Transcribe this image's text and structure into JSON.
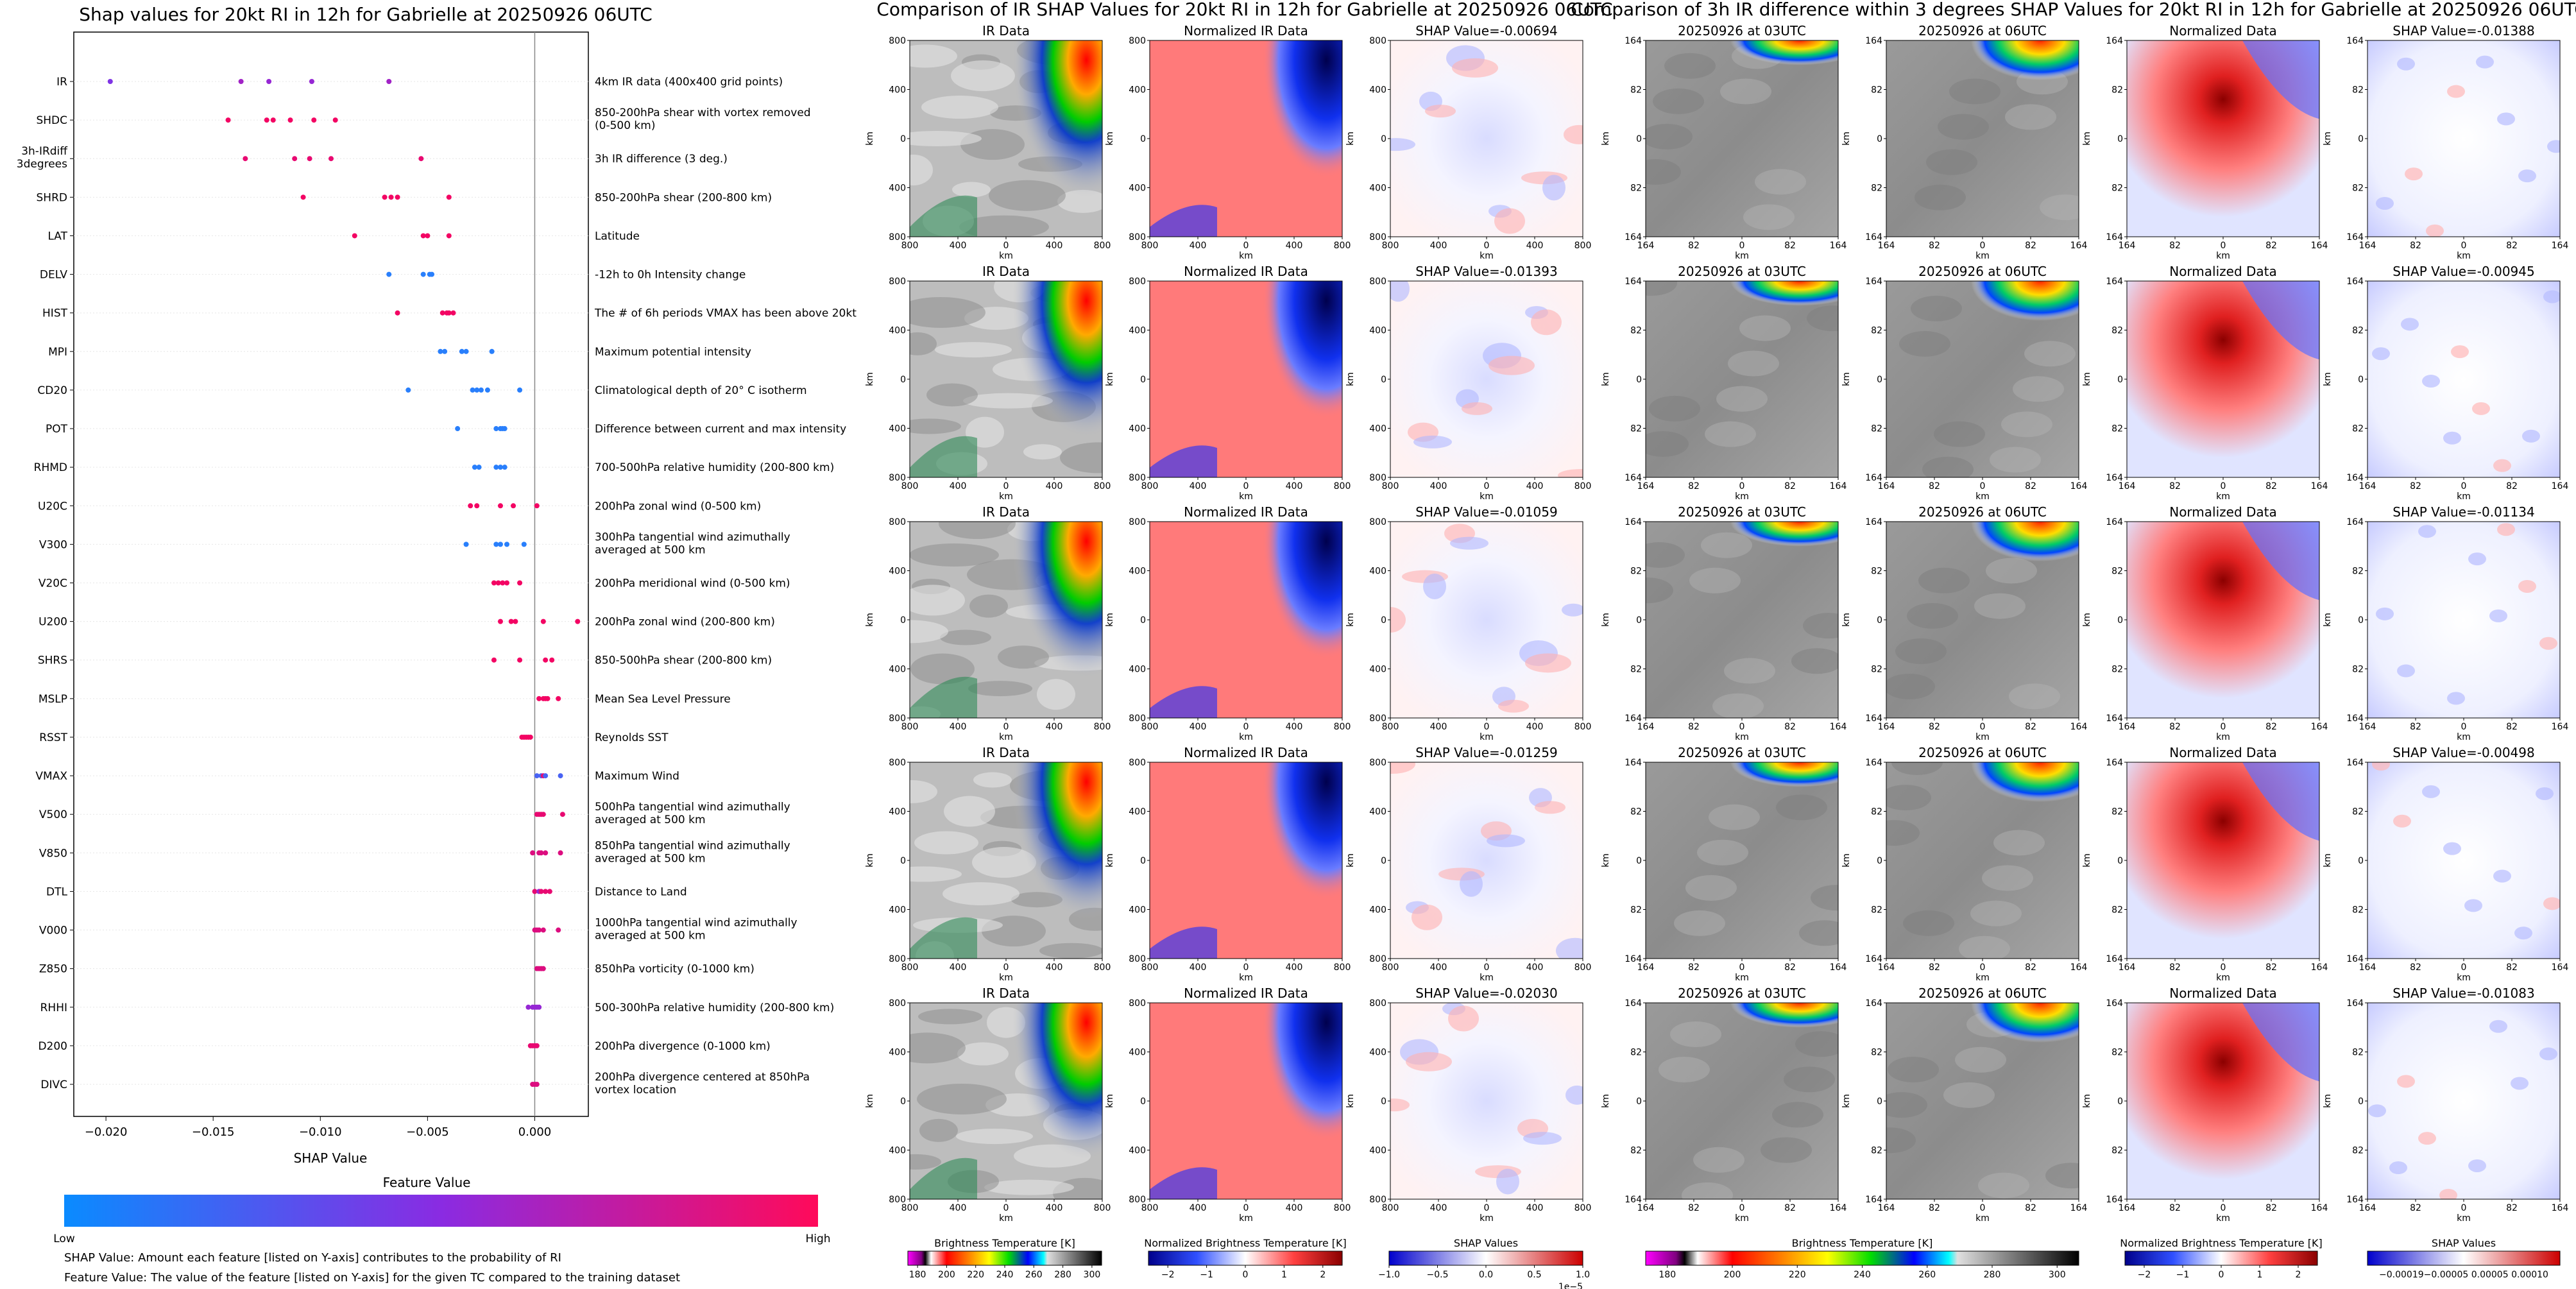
{
  "left_panel": {
    "title": "Shap values for 20kt RI in 12h for Gabrielle at 20250926 06UTC",
    "x_axis_label": "SHAP Value",
    "colorbar_title": "Feature Value",
    "colorbar_low_label": "Low",
    "colorbar_high_label": "High",
    "footnote_1": "SHAP Value: Amount each feature [listed on Y-axis] contributes to the probability of RI",
    "footnote_2": "Feature Value: The value of the feature [listed on Y-axis] for the given TC compared to the training dataset"
  },
  "colors": {
    "low": "#1e88ff",
    "mid": "#8a2be2",
    "high": "#ff0055"
  },
  "chart_data": [
    {
      "type": "scatter",
      "title": "Shap values for 20kt RI in 12h for Gabrielle at 20250926 06UTC",
      "xlabel": "SHAP Value",
      "xlim": [
        -0.0215,
        0.0025
      ],
      "xticks": [
        -0.02,
        -0.015,
        -0.01,
        -0.005,
        0.0
      ],
      "xtick_labels": [
        "−0.020",
        "−0.015",
        "−0.010",
        "−0.005",
        "0.000"
      ],
      "features": [
        {
          "name": "IR",
          "description": "4km IR data (400x400 grid points)",
          "points": [
            [
              -0.0198,
              0.45
            ],
            [
              -0.0137,
              0.6
            ],
            [
              -0.0124,
              0.55
            ],
            [
              -0.0104,
              0.55
            ],
            [
              -0.0068,
              0.6
            ]
          ]
        },
        {
          "name": "SHDC",
          "description": "850-200hPa shear with vortex removed (0-500 km)",
          "points": [
            [
              -0.0143,
              0.95
            ],
            [
              -0.0125,
              0.95
            ],
            [
              -0.0122,
              0.95
            ],
            [
              -0.0114,
              0.95
            ],
            [
              -0.0103,
              0.95
            ],
            [
              -0.0093,
              0.95
            ]
          ]
        },
        {
          "name": "3h-IRdiff 3degrees",
          "description": "3h IR difference (3 deg.)",
          "points": [
            [
              -0.0135,
              0.9
            ],
            [
              -0.0112,
              0.9
            ],
            [
              -0.0105,
              0.9
            ],
            [
              -0.0095,
              0.9
            ],
            [
              -0.0053,
              0.9
            ]
          ]
        },
        {
          "name": "SHRD",
          "description": "850-200hPa shear (200-800 km)",
          "points": [
            [
              -0.0108,
              0.95
            ],
            [
              -0.007,
              0.95
            ],
            [
              -0.0067,
              0.95
            ],
            [
              -0.0064,
              0.95
            ],
            [
              -0.004,
              0.95
            ]
          ]
        },
        {
          "name": "LAT",
          "description": "Latitude",
          "points": [
            [
              -0.0084,
              0.95
            ],
            [
              -0.0052,
              0.95
            ],
            [
              -0.005,
              0.95
            ],
            [
              -0.004,
              0.95
            ]
          ]
        },
        {
          "name": "DELV",
          "description": "-12h to 0h Intensity change",
          "points": [
            [
              -0.0068,
              0.05
            ],
            [
              -0.0052,
              0.05
            ],
            [
              -0.0049,
              0.05
            ],
            [
              -0.0048,
              0.05
            ]
          ]
        },
        {
          "name": "HIST",
          "description": "The # of 6h periods VMAX has been above 20kt",
          "points": [
            [
              -0.0064,
              0.95
            ],
            [
              -0.0043,
              0.95
            ],
            [
              -0.0041,
              0.95
            ],
            [
              -0.004,
              0.95
            ],
            [
              -0.0038,
              0.95
            ]
          ]
        },
        {
          "name": "MPI",
          "description": "Maximum potential intensity",
          "points": [
            [
              -0.0044,
              0.05
            ],
            [
              -0.0042,
              0.05
            ],
            [
              -0.0034,
              0.05
            ],
            [
              -0.0032,
              0.05
            ],
            [
              -0.002,
              0.05
            ]
          ]
        },
        {
          "name": "CD20",
          "description": "Climatological depth of 20° C isotherm",
          "points": [
            [
              -0.0059,
              0.05
            ],
            [
              -0.0029,
              0.05
            ],
            [
              -0.0027,
              0.05
            ],
            [
              -0.0025,
              0.05
            ],
            [
              -0.0022,
              0.05
            ],
            [
              -0.0007,
              0.05
            ]
          ]
        },
        {
          "name": "POT",
          "description": "Difference between current and max intensity",
          "points": [
            [
              -0.0036,
              0.05
            ],
            [
              -0.0018,
              0.05
            ],
            [
              -0.0016,
              0.05
            ],
            [
              -0.0015,
              0.05
            ],
            [
              -0.0014,
              0.05
            ]
          ]
        },
        {
          "name": "RHMD",
          "description": "700-500hPa relative humidity (200-800 km)",
          "points": [
            [
              -0.0028,
              0.05
            ],
            [
              -0.0026,
              0.05
            ],
            [
              -0.0018,
              0.05
            ],
            [
              -0.0016,
              0.05
            ],
            [
              -0.0014,
              0.05
            ]
          ]
        },
        {
          "name": "U20C",
          "description": "200hPa zonal wind (0-500 km)",
          "points": [
            [
              -0.003,
              0.95
            ],
            [
              -0.0027,
              0.95
            ],
            [
              -0.0016,
              0.95
            ],
            [
              -0.001,
              0.95
            ],
            [
              0.0001,
              0.95
            ]
          ]
        },
        {
          "name": "V300",
          "description": "300hPa tangential wind azimuthally averaged at 500 km",
          "points": [
            [
              -0.0032,
              0.05
            ],
            [
              -0.0018,
              0.05
            ],
            [
              -0.0016,
              0.05
            ],
            [
              -0.0013,
              0.05
            ],
            [
              -0.0005,
              0.05
            ]
          ]
        },
        {
          "name": "V20C",
          "description": "200hPa meridional wind (0-500 km)",
          "points": [
            [
              -0.0019,
              0.95
            ],
            [
              -0.0017,
              0.95
            ],
            [
              -0.0015,
              0.95
            ],
            [
              -0.0013,
              0.95
            ],
            [
              -0.0007,
              0.95
            ]
          ]
        },
        {
          "name": "U200",
          "description": "200hPa zonal wind (200-800 km)",
          "points": [
            [
              -0.0016,
              0.95
            ],
            [
              -0.0011,
              0.95
            ],
            [
              -0.0009,
              0.95
            ],
            [
              0.0004,
              0.95
            ],
            [
              0.002,
              0.95
            ]
          ]
        },
        {
          "name": "SHRS",
          "description": "850-500hPa shear (200-800 km)",
          "points": [
            [
              -0.0019,
              0.95
            ],
            [
              -0.0007,
              0.95
            ],
            [
              0.0005,
              0.95
            ],
            [
              0.0008,
              0.95
            ]
          ]
        },
        {
          "name": "MSLP",
          "description": "Mean Sea Level Pressure",
          "points": [
            [
              0.0002,
              0.95
            ],
            [
              0.0004,
              0.95
            ],
            [
              0.0005,
              0.95
            ],
            [
              0.0006,
              0.95
            ],
            [
              0.0011,
              0.95
            ]
          ]
        },
        {
          "name": "RSST",
          "description": "Reynolds SST",
          "points": [
            [
              -0.0006,
              0.95
            ],
            [
              -0.0005,
              0.95
            ],
            [
              -0.0004,
              0.95
            ],
            [
              -0.0003,
              0.95
            ],
            [
              -0.0002,
              0.95
            ]
          ]
        },
        {
          "name": "VMAX",
          "description": "Maximum Wind",
          "points": [
            [
              0.0001,
              0.2
            ],
            [
              0.0003,
              0.2
            ],
            [
              0.0004,
              0.9
            ],
            [
              0.0005,
              0.2
            ],
            [
              0.0012,
              0.2
            ]
          ]
        },
        {
          "name": "V500",
          "description": "500hPa tangential wind azimuthally averaged at 500 km",
          "points": [
            [
              0.0001,
              0.9
            ],
            [
              0.0002,
              0.9
            ],
            [
              0.0003,
              0.9
            ],
            [
              0.0004,
              0.9
            ],
            [
              0.0013,
              0.9
            ]
          ]
        },
        {
          "name": "V850",
          "description": "850hPa tangential wind azimuthally averaged at 500 km",
          "points": [
            [
              -0.0001,
              0.85
            ],
            [
              0.0002,
              0.85
            ],
            [
              0.0003,
              0.85
            ],
            [
              0.0005,
              0.85
            ],
            [
              0.0012,
              0.85
            ]
          ]
        },
        {
          "name": "DTL",
          "description": "Distance to Land",
          "points": [
            [
              0.0,
              0.9
            ],
            [
              0.0002,
              0.55
            ],
            [
              0.0003,
              0.9
            ],
            [
              0.0005,
              0.9
            ],
            [
              0.0007,
              0.9
            ]
          ]
        },
        {
          "name": "V000",
          "description": "1000hPa tangential wind azimuthally averaged at 500 km",
          "points": [
            [
              0.0,
              0.85
            ],
            [
              0.0001,
              0.85
            ],
            [
              0.0002,
              0.85
            ],
            [
              0.0004,
              0.85
            ],
            [
              0.0011,
              0.85
            ]
          ]
        },
        {
          "name": "Z850",
          "description": "850hPa vorticity (0-1000 km)",
          "points": [
            [
              0.0001,
              0.85
            ],
            [
              0.0002,
              0.85
            ],
            [
              0.0003,
              0.85
            ],
            [
              0.0004,
              0.85
            ]
          ]
        },
        {
          "name": "RHHI",
          "description": "500-300hPa relative humidity (200-800 km)",
          "points": [
            [
              -0.0003,
              0.55
            ],
            [
              -0.0001,
              0.55
            ],
            [
              0.0,
              0.55
            ],
            [
              0.0001,
              0.55
            ],
            [
              0.0002,
              0.55
            ]
          ]
        },
        {
          "name": "D200",
          "description": "200hPa divergence (0-1000 km)",
          "points": [
            [
              -0.0002,
              0.9
            ],
            [
              -0.0001,
              0.9
            ],
            [
              0.0,
              0.9
            ],
            [
              0.0001,
              0.9
            ]
          ]
        },
        {
          "name": "DIVC",
          "description": "200hPa divergence centered at 850hPa vortex location",
          "points": [
            [
              -0.0001,
              0.85
            ],
            [
              0.0,
              0.85
            ],
            [
              0.0001,
              0.85
            ]
          ]
        }
      ]
    }
  ],
  "middle_panel": {
    "title": "Comparison of IR SHAP Values for 20kt RI in 12h for Gabrielle at 20250926 06UTC",
    "col_titles": [
      "IR Data",
      "Normalized IR Data"
    ],
    "shap_titles": [
      "SHAP Value=-0.00694",
      "SHAP Value=-0.01393",
      "SHAP Value=-0.01059",
      "SHAP Value=-0.01259",
      "SHAP Value=-0.02030"
    ],
    "axis_label": "km",
    "tick_labels": [
      "800",
      "400",
      "0",
      "400",
      "800"
    ],
    "colorbars": [
      {
        "label": "Brightness Temperature [K]",
        "ticks": [
          "180",
          "200",
          "220",
          "240",
          "260",
          "280",
          "300"
        ]
      },
      {
        "label": "Normalized Brightness Temperature [K]",
        "ticks": [
          "−2",
          "−1",
          "0",
          "1",
          "2"
        ]
      },
      {
        "label": "SHAP Values",
        "ticks": [
          "−1.0",
          "−0.5",
          "0.0",
          "0.5",
          "1.0"
        ],
        "offset": "1e−5"
      }
    ]
  },
  "right_panel": {
    "title": "Comparison of 3h IR difference within 3 degrees SHAP Values for 20kt RI in 12h for Gabrielle at 20250926 06UTC",
    "col_titles": [
      "20250926 at 03UTC",
      "20250926 at 06UTC",
      "Normalized Data"
    ],
    "shap_titles": [
      "SHAP Value=-0.01388",
      "SHAP Value=-0.00945",
      "SHAP Value=-0.01134",
      "SHAP Value=-0.00498",
      "SHAP Value=-0.01083"
    ],
    "axis_label": "km",
    "tick_labels": [
      "164",
      "82",
      "0",
      "82",
      "164"
    ],
    "colorbars": [
      {
        "label": "Brightness Temperature [K]",
        "ticks": [
          "180",
          "200",
          "220",
          "240",
          "260",
          "280",
          "300"
        ]
      },
      {
        "label": "Normalized Brightness Temperature [K]",
        "ticks": [
          "−2",
          "−1",
          "0",
          "1",
          "2"
        ]
      },
      {
        "label": "SHAP Values",
        "ticks": [
          "−0.00019",
          "−0.00005",
          "0.00005",
          "0.00010"
        ],
        "tick_text": "−0.00019−0.00005 0.00005  0.00010"
      }
    ]
  }
}
